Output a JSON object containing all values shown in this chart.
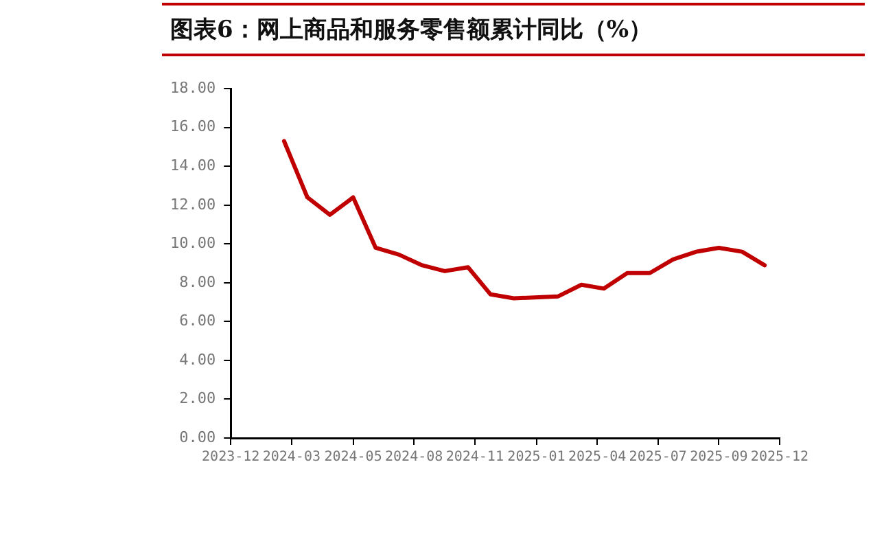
{
  "chart_data": {
    "type": "line",
    "title": "图表6：网上商品和服务零售额累计同比（%）",
    "x": [
      "2024-02-29",
      "2024-03-31",
      "2024-04-30",
      "2024-05-31",
      "2024-06-30",
      "2024-07-31",
      "2024-08-31",
      "2024-09-30",
      "2024-10-31",
      "2024-11-30",
      "2024-12-31",
      "2025-02-28",
      "2025-03-31",
      "2025-04-30",
      "2025-05-31",
      "2025-06-30",
      "2025-07-31",
      "2025-08-31",
      "2025-09-30",
      "2025-10-31",
      "2025-11-30"
    ],
    "series": [
      {
        "color": "#c00000",
        "values": [
          15.3,
          12.4,
          11.5,
          12.4,
          9.8,
          9.45,
          8.9,
          8.6,
          8.8,
          7.4,
          7.2,
          7.3,
          7.9,
          7.7,
          8.5,
          8.5,
          9.2,
          9.6,
          9.8,
          9.6,
          8.9
        ]
      }
    ],
    "xlim": [
      "2023-12-20",
      "2025-12-20"
    ],
    "xticks": [
      {
        "value": "2023-12-20",
        "label": "2023-12"
      },
      {
        "value": "2024-03-10",
        "label": "2024-03"
      },
      {
        "value": "2024-05-31",
        "label": "2024-05"
      },
      {
        "value": "2024-08-20",
        "label": "2024-08"
      },
      {
        "value": "2024-11-09",
        "label": "2024-11"
      },
      {
        "value": "2025-01-30",
        "label": "2025-01"
      },
      {
        "value": "2025-04-21",
        "label": "2025-04"
      },
      {
        "value": "2025-07-11",
        "label": "2025-07"
      },
      {
        "value": "2025-09-30",
        "label": "2025-09"
      },
      {
        "value": "2025-12-20",
        "label": "2025-12"
      }
    ],
    "ylim": [
      0,
      18
    ],
    "yticks": [
      {
        "value": 0,
        "label": "0.00"
      },
      {
        "value": 2,
        "label": "2.00"
      },
      {
        "value": 4,
        "label": "4.00"
      },
      {
        "value": 6,
        "label": "6.00"
      },
      {
        "value": 8,
        "label": "8.00"
      },
      {
        "value": 10,
        "label": "10.00"
      },
      {
        "value": 12,
        "label": "12.00"
      },
      {
        "value": 14,
        "label": "14.00"
      },
      {
        "value": 16,
        "label": "16.00"
      },
      {
        "value": 18,
        "label": "18.00"
      }
    ],
    "grid": false,
    "legend": false,
    "marker": "none",
    "line_style": "solid"
  }
}
